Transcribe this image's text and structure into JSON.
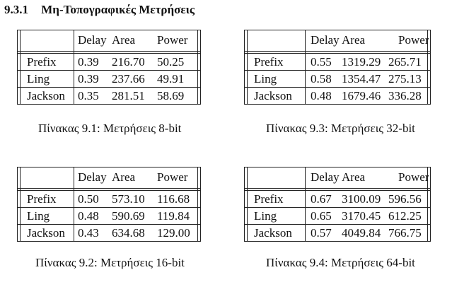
{
  "section": {
    "number": "9.3.1",
    "title": "Μη-Τοπογραφικές Μετρήσεις"
  },
  "tables": [
    {
      "header": [
        "Delay",
        "Area",
        "Power"
      ],
      "rows": [
        {
          "name": "Prefix",
          "delay": "0.39",
          "area": "216.70",
          "power": "50.25"
        },
        {
          "name": "Ling",
          "delay": "0.39",
          "area": "237.66",
          "power": "49.91"
        },
        {
          "name": "Jackson",
          "delay": "0.35",
          "area": "281.51",
          "power": "58.69"
        }
      ],
      "caption": "Πίνακας 9.1: Μετρήσεις 8-bit"
    },
    {
      "header": [
        "Delay",
        "Area",
        "Power"
      ],
      "rows": [
        {
          "name": "Prefix",
          "delay": "0.55",
          "area": "1319.29",
          "power": "265.71"
        },
        {
          "name": "Ling",
          "delay": "0.58",
          "area": "1354.47",
          "power": "275.13"
        },
        {
          "name": "Jackson",
          "delay": "0.48",
          "area": "1679.46",
          "power": "336.28"
        }
      ],
      "caption": "Πίνακας 9.3: Μετρήσεις 32-bit"
    },
    {
      "header": [
        "Delay",
        "Area",
        "Power"
      ],
      "rows": [
        {
          "name": "Prefix",
          "delay": "0.50",
          "area": "573.10",
          "power": "116.68"
        },
        {
          "name": "Ling",
          "delay": "0.48",
          "area": "590.69",
          "power": "119.84"
        },
        {
          "name": "Jackson",
          "delay": "0.43",
          "area": "634.68",
          "power": "129.00"
        }
      ],
      "caption": "Πίνακας 9.2: Μετρήσεις 16-bit"
    },
    {
      "header": [
        "Delay",
        "Area",
        "Power"
      ],
      "rows": [
        {
          "name": "Prefix",
          "delay": "0.67",
          "area": "3100.09",
          "power": "596.56"
        },
        {
          "name": "Ling",
          "delay": "0.65",
          "area": "3170.45",
          "power": "612.25"
        },
        {
          "name": "Jackson",
          "delay": "0.57",
          "area": "4049.84",
          "power": "766.75"
        }
      ],
      "caption": "Πίνακας 9.4: Μετρήσεις 64-bit"
    }
  ]
}
